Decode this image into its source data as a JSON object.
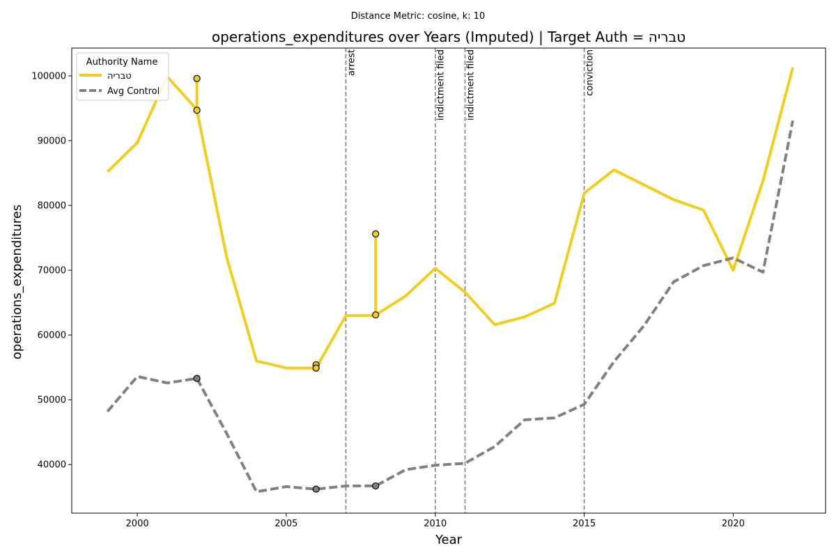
{
  "chart_data": {
    "type": "line",
    "suptitle": "Distance Metric: cosine, k: 10",
    "title": "operations_expenditures over Years (Imputed) | Target Auth = טבריה",
    "xlabel": "Year",
    "ylabel": "operations_expenditures",
    "xlim": [
      1997.8,
      2023.1
    ],
    "ylim": [
      32500,
      104300
    ],
    "xticks": [
      2000,
      2005,
      2010,
      2015,
      2020
    ],
    "yticks": [
      40000,
      50000,
      60000,
      70000,
      80000,
      90000,
      100000
    ],
    "legend": {
      "title": "Authority Name",
      "position": "top-left",
      "entries": [
        "טבריה",
        "Avg Control"
      ]
    },
    "colors": {
      "target": "#f0cd21",
      "control": "#808080",
      "event_line": "#808080"
    },
    "series": [
      {
        "name": "טבריה",
        "style": "solid",
        "points": [
          [
            1999,
            85200
          ],
          [
            2000,
            89700
          ],
          [
            2001,
            99900
          ],
          [
            2002,
            94800
          ],
          [
            2002,
            99600
          ],
          [
            2002,
            94700
          ],
          [
            2003,
            72000
          ],
          [
            2004,
            56000
          ],
          [
            2005,
            54900
          ],
          [
            2006,
            54900
          ],
          [
            2006,
            55400
          ],
          [
            2006,
            54900
          ],
          [
            2007,
            63000
          ],
          [
            2008,
            63000
          ],
          [
            2008,
            75600
          ],
          [
            2008,
            63100
          ],
          [
            2009,
            66000
          ],
          [
            2010,
            70300
          ],
          [
            2011,
            66600
          ],
          [
            2012,
            61600
          ],
          [
            2013,
            62800
          ],
          [
            2014,
            64900
          ],
          [
            2015,
            81900
          ],
          [
            2016,
            85500
          ],
          [
            2017,
            83200
          ],
          [
            2018,
            80900
          ],
          [
            2019,
            79300
          ],
          [
            2020,
            70000
          ],
          [
            2021,
            83800
          ],
          [
            2022,
            101300
          ]
        ],
        "markers": [
          [
            2002,
            99600
          ],
          [
            2002,
            94700
          ],
          [
            2006,
            55400
          ],
          [
            2006,
            54900
          ],
          [
            2008,
            75600
          ],
          [
            2008,
            63100
          ]
        ]
      },
      {
        "name": "Avg Control",
        "style": "dashed",
        "points": [
          [
            1999,
            48200
          ],
          [
            2000,
            53600
          ],
          [
            2001,
            52600
          ],
          [
            2002,
            53300
          ],
          [
            2003,
            44800
          ],
          [
            2004,
            35800
          ],
          [
            2005,
            36600
          ],
          [
            2006,
            36200
          ],
          [
            2007,
            36700
          ],
          [
            2008,
            36700
          ],
          [
            2009,
            39200
          ],
          [
            2010,
            39900
          ],
          [
            2011,
            40200
          ],
          [
            2012,
            42800
          ],
          [
            2013,
            46900
          ],
          [
            2014,
            47200
          ],
          [
            2015,
            49300
          ],
          [
            2016,
            55900
          ],
          [
            2017,
            61400
          ],
          [
            2018,
            68200
          ],
          [
            2019,
            70700
          ],
          [
            2020,
            71900
          ],
          [
            2021,
            69700
          ],
          [
            2022,
            93100
          ]
        ],
        "markers": [
          [
            2002,
            53300
          ],
          [
            2006,
            36200
          ],
          [
            2008,
            36700
          ]
        ]
      }
    ],
    "events": [
      {
        "x": 2007,
        "label": "arrest"
      },
      {
        "x": 2010,
        "label": "indictment filed"
      },
      {
        "x": 2011,
        "label": "indictment filed"
      },
      {
        "x": 2015,
        "label": "conviction"
      }
    ]
  }
}
